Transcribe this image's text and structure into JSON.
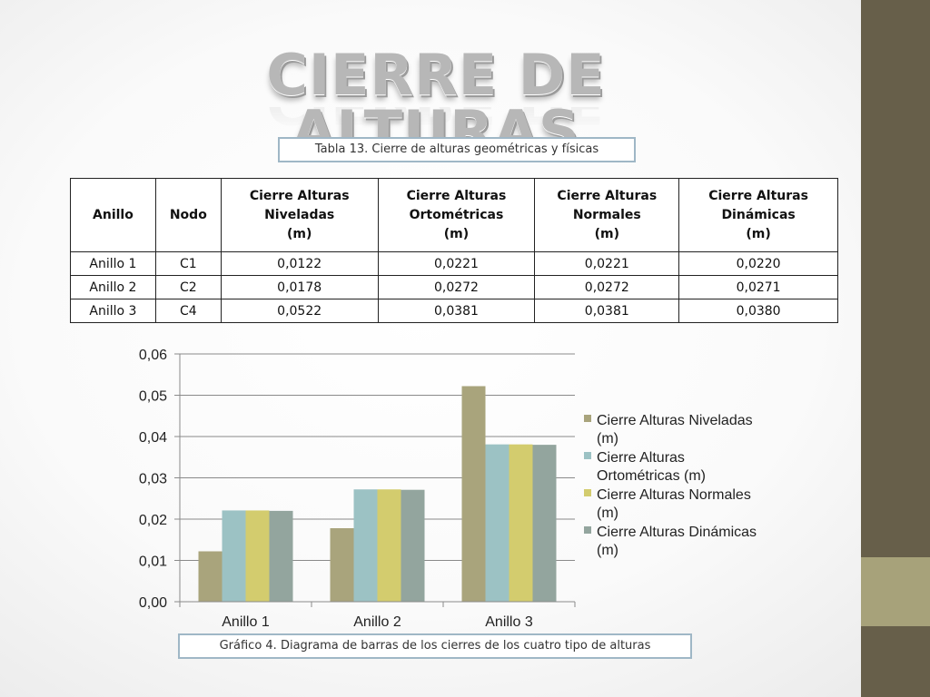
{
  "title": "CIERRE DE ALTURAS",
  "table_caption": "Tabla 13. Cierre de alturas geométricas y físicas",
  "chart_caption": "Gráfico 4. Diagrama de barras de los cierres de los cuatro tipo de alturas",
  "table": {
    "headers": [
      [
        "Anillo"
      ],
      [
        "Nodo"
      ],
      [
        "Cierre Alturas",
        "Niveladas",
        "(m)"
      ],
      [
        "Cierre Alturas",
        "Ortométricas",
        "(m)"
      ],
      [
        "Cierre Alturas",
        "Normales",
        "(m)"
      ],
      [
        "Cierre Alturas",
        "Dinámicas",
        "(m)"
      ]
    ],
    "rows": [
      [
        "Anillo 1",
        "C1",
        "0,0122",
        "0,0221",
        "0,0221",
        "0,0220"
      ],
      [
        "Anillo 2",
        "C2",
        "0,0178",
        "0,0272",
        "0,0272",
        "0,0271"
      ],
      [
        "Anillo 3",
        "C4",
        "0,0522",
        "0,0381",
        "0,0381",
        "0,0380"
      ]
    ]
  },
  "chart_data": {
    "type": "bar",
    "categories": [
      "Anillo 1",
      "Anillo 2",
      "Anillo 3"
    ],
    "series": [
      {
        "name": "Cierre Alturas Niveladas (m)",
        "legend_lines": [
          "Cierre Alturas Niveladas",
          "(m)"
        ],
        "color": "#a9a47c",
        "values": [
          0.0122,
          0.0178,
          0.0522
        ]
      },
      {
        "name": "Cierre Alturas Ortométricas (m)",
        "legend_lines": [
          "Cierre Alturas",
          "Ortométricas (m)"
        ],
        "color": "#9cc2c4",
        "values": [
          0.0221,
          0.0272,
          0.0381
        ]
      },
      {
        "name": "Cierre Alturas Normales (m)",
        "legend_lines": [
          "Cierre Alturas Normales",
          "(m)"
        ],
        "color": "#d3cc6e",
        "values": [
          0.0221,
          0.0272,
          0.0381
        ]
      },
      {
        "name": "Cierre Alturas Dinámicas (m)",
        "legend_lines": [
          "Cierre Alturas Dinámicas",
          "(m)"
        ],
        "color": "#93a59e",
        "values": [
          0.022,
          0.0271,
          0.038
        ]
      }
    ],
    "ylim": [
      0,
      0.06
    ],
    "yticks": [
      0,
      0.01,
      0.02,
      0.03,
      0.04,
      0.05,
      0.06
    ],
    "ytick_labels": [
      "0,00",
      "0,01",
      "0,02",
      "0,03",
      "0,04",
      "0,05",
      "0,06"
    ],
    "grid": true,
    "legend_position": "right",
    "xlabel": "",
    "ylabel": ""
  }
}
